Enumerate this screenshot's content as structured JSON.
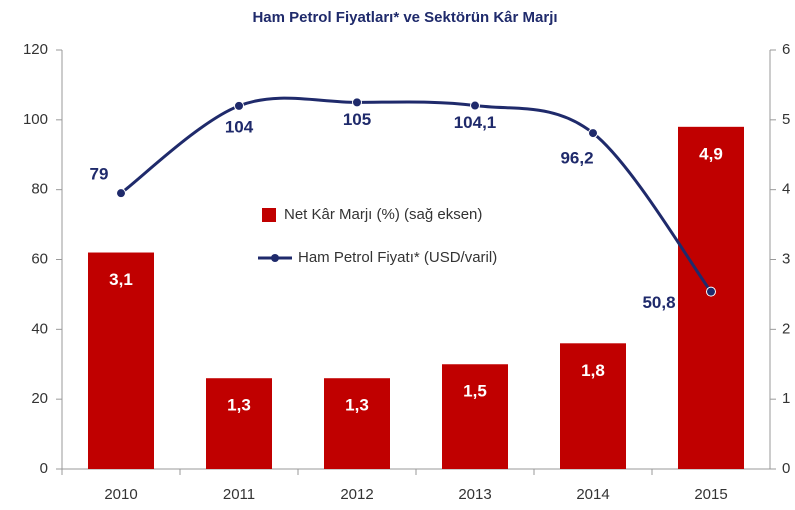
{
  "chart_data": {
    "type": "bar_line",
    "title": "Ham Petrol Fiyatları* ve Sektörün Kâr Marjı",
    "categories": [
      "2010",
      "2011",
      "2012",
      "2013",
      "2014",
      "2015"
    ],
    "ylim": [
      0,
      120
    ],
    "yticks": [
      0,
      20,
      40,
      60,
      80,
      100,
      120
    ],
    "y2lim": [
      0,
      6
    ],
    "y2ticks": [
      0,
      1,
      2,
      3,
      4,
      5,
      6
    ],
    "legend": "center",
    "series": [
      {
        "name": "Net Kâr Marjı (%) (sağ eksen)",
        "type": "bar",
        "axis": "y2",
        "color": "#c00000",
        "values": [
          3.1,
          1.3,
          1.3,
          1.5,
          1.8,
          4.9
        ],
        "value_labels": [
          "3,1",
          "1,3",
          "1,3",
          "1,5",
          "1,8",
          "4,9"
        ]
      },
      {
        "name": "Ham Petrol Fiyatı* (USD/varil)",
        "type": "line",
        "axis": "y",
        "color": "#1f2a6b",
        "values": [
          79,
          104,
          105,
          104.1,
          96.2,
          50.8
        ],
        "value_labels": [
          "79",
          "104",
          "105",
          "104,1",
          "96,2",
          "50,8"
        ]
      }
    ]
  }
}
